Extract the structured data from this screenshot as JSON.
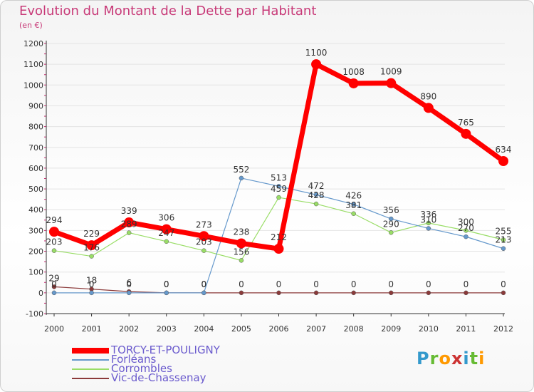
{
  "chart_data": {
    "type": "line",
    "title": "Evolution du Montant de la Dette par Habitant",
    "subtitle": "(en €)",
    "xlabel": "",
    "ylabel": "",
    "categories": [
      "2000",
      "2001",
      "2002",
      "2003",
      "2004",
      "2005",
      "2006",
      "2007",
      "2008",
      "2009",
      "2010",
      "2011",
      "2012"
    ],
    "ylim": [
      -100,
      1200
    ],
    "yticks": [
      -100,
      0,
      100,
      200,
      300,
      400,
      500,
      600,
      700,
      800,
      900,
      1000,
      1100,
      1200
    ],
    "series": [
      {
        "name": "TORCY-ET-POULIGNY",
        "color": "#ff0000",
        "values": [
          294,
          229,
          339,
          306,
          273,
          238,
          212,
          1100,
          1008,
          1009,
          890,
          765,
          634
        ],
        "labels": [
          "294",
          "229",
          "339",
          "306",
          "273",
          "238",
          "212",
          "1100",
          "1008",
          "1009",
          "890",
          "765",
          "634"
        ]
      },
      {
        "name": "Forléans",
        "color": "#6699cc",
        "values": [
          0,
          0,
          0,
          0,
          0,
          552,
          513,
          472,
          426,
          356,
          310,
          270,
          213
        ],
        "labels": [
          "0",
          "0",
          "0",
          "0",
          "0",
          "552",
          "513",
          "472",
          "426",
          "356",
          "310",
          "270",
          "213"
        ]
      },
      {
        "name": "Corrombles",
        "color": "#99dd66",
        "values": [
          203,
          176,
          289,
          247,
          203,
          156,
          459,
          428,
          381,
          290,
          336,
          300,
          255
        ],
        "labels": [
          "203",
          "176",
          "289",
          "247",
          "203",
          "156",
          "459",
          "428",
          "381",
          "290",
          "336",
          "300",
          "255"
        ]
      },
      {
        "name": "Vic-de-Chassenay",
        "color": "#8b3a3a",
        "values": [
          29,
          18,
          6,
          0,
          0,
          0,
          0,
          0,
          0,
          0,
          0,
          0,
          0
        ],
        "labels": [
          "29",
          "18",
          "6",
          "0",
          "0",
          "0",
          "0",
          "0",
          "0",
          "0",
          "0",
          "0",
          "0"
        ]
      }
    ]
  },
  "brand": {
    "letters": [
      "P",
      "r",
      "o",
      "x",
      "i",
      "t",
      "i"
    ],
    "colors": [
      "#3399cc",
      "#66bb33",
      "#ff9900",
      "#cc3333",
      "#3399cc",
      "#66bb33",
      "#ff9900"
    ]
  }
}
